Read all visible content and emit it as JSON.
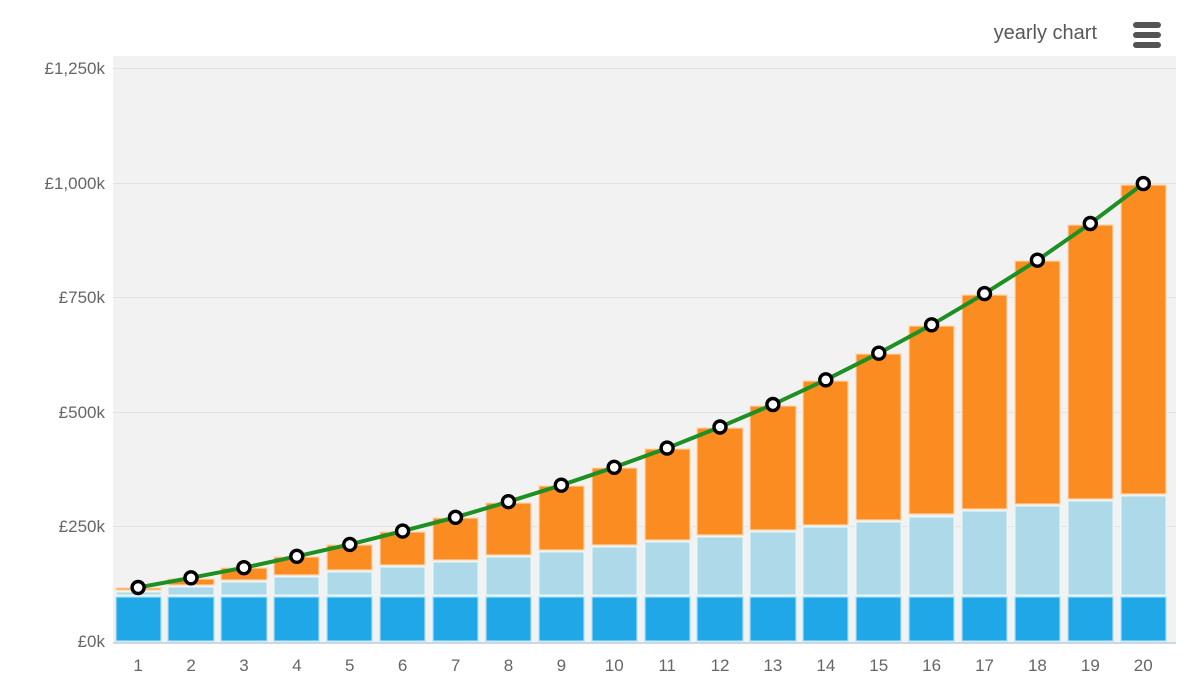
{
  "header": {
    "title": "yearly chart"
  },
  "chart_data": {
    "type": "bar",
    "subtype": "stacked-columns-with-total-line",
    "title": "yearly chart",
    "xlabel": "",
    "ylabel": "",
    "grid": true,
    "legend": "none",
    "x_tick_labels": [
      "1",
      "2",
      "3",
      "4",
      "5",
      "6",
      "7",
      "8",
      "9",
      "10",
      "11",
      "12",
      "13",
      "14",
      "15",
      "16",
      "17",
      "18",
      "19",
      "20"
    ],
    "y_tick_labels": [
      "£0k",
      "£250k",
      "£500k",
      "£750k",
      "£1,000k",
      "£1,250k"
    ],
    "y_tick_values_k": [
      0,
      250,
      500,
      750,
      1000,
      1250
    ],
    "ylim_k": [
      0,
      1278
    ],
    "unit": "GBP thousands (k)",
    "categories": [
      1,
      2,
      3,
      4,
      5,
      6,
      7,
      8,
      9,
      10,
      11,
      12,
      13,
      14,
      15,
      16,
      17,
      18,
      19,
      20
    ],
    "series": [
      {
        "name": "dark-blue-base-segment",
        "render": "column-segment",
        "color": "#1fa7e8",
        "values_k": [
          100,
          100,
          100,
          100,
          100,
          100,
          100,
          100,
          100,
          100,
          100,
          100,
          100,
          100,
          100,
          100,
          100,
          100,
          100,
          100
        ]
      },
      {
        "name": "light-blue-middle-segment",
        "render": "column-segment",
        "color": "#aed9e8",
        "values_k": [
          11,
          22,
          33,
          44,
          55,
          66,
          77,
          88,
          99,
          110,
          121,
          132,
          143,
          154,
          165,
          176,
          187,
          198,
          209,
          220
        ]
      },
      {
        "name": "orange-top-segment",
        "render": "column-segment",
        "color": "#fb8c21",
        "values_k": [
          8,
          18,
          30,
          43,
          58,
          76,
          95,
          118,
          143,
          171,
          202,
          237,
          275,
          318,
          365,
          416,
          473,
          535,
          604,
          680
        ]
      },
      {
        "name": "green-total-line",
        "render": "line",
        "color": "#1e8f22",
        "marker_fill": "#ffffff",
        "marker_stroke": "#000000",
        "values_k": [
          119,
          140,
          162,
          187,
          213,
          242,
          272,
          306,
          342,
          381,
          423,
          469,
          518,
          572,
          630,
          692,
          760,
          833,
          913,
          1000
        ]
      }
    ]
  },
  "colors": {
    "plot_background": "#f2f2f2",
    "gridline": "#e2e2e2",
    "axis_line": "#cdd7e0",
    "tick_label": "#666666",
    "title_text": "#58585a",
    "menu_icon": "#545454"
  }
}
